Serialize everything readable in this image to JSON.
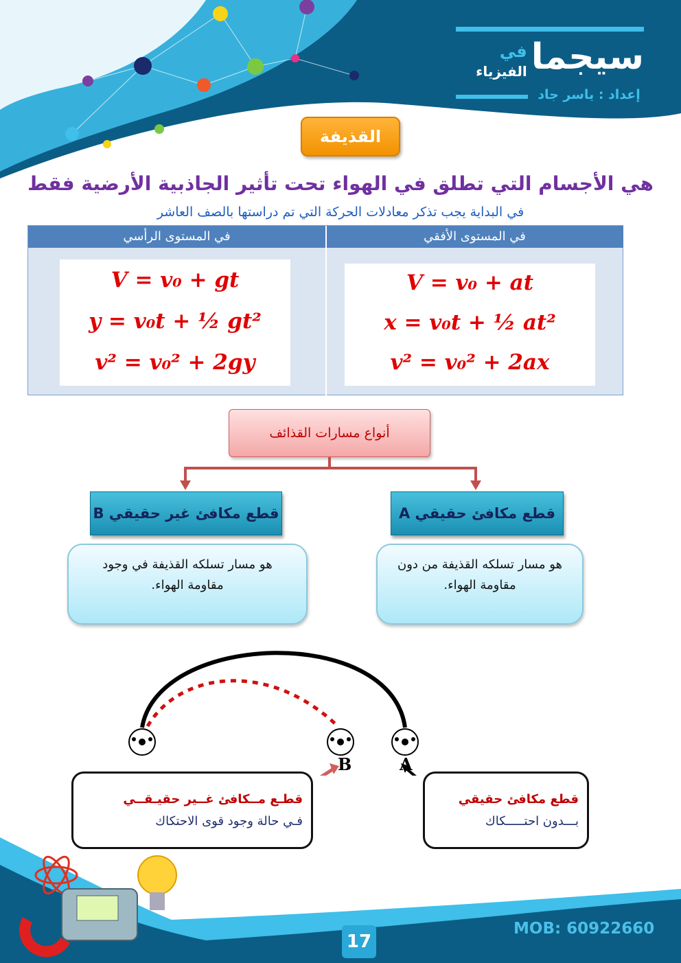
{
  "header": {
    "brand_main": "سيجما",
    "brand_small_top": "في",
    "brand_small": "الفيزياء",
    "author": "إعداد : ياسر جاد",
    "colors": {
      "dark_blue": "#0b5d86",
      "light_blue": "#3fbfea"
    }
  },
  "badge": {
    "label": "القذيفة",
    "color": "#f39200"
  },
  "definition": "هي الأجسام التي تطلق في الهواء تحت تأثير الجاذبية الأرضية فقط",
  "intro": "في البداية يجب تذكر معادلات الحركة التي تم دراستها بالصف العاشر",
  "table": {
    "horizontal": {
      "header": "في المستوى الأفقي",
      "eq1": "V = v₀ + at",
      "eq2": "x = v₀t + ½ at²",
      "eq3": "v² = v₀² + 2ax"
    },
    "vertical": {
      "header": "في المستوى الرأسي",
      "eq1": "V = v₀ + gt",
      "eq2": "y = v₀t + ½ gt²",
      "eq3": "v² = v₀² + 2gy"
    }
  },
  "flow": {
    "root": "أنواع مسارات القذائف",
    "a": {
      "title": "قطع مكافئ حقيقي A",
      "desc_line1": "هو مسار تسلكه القذيفة من دون",
      "desc_line2": "مقاومة الهواء."
    },
    "b": {
      "title": "قطع مكافئ غير حقيقي B",
      "desc_line1": "هو مسار تسلكه القذيفة في وجود",
      "desc_line2": "مقاومة الهواء."
    }
  },
  "diagram": {
    "label_a": "A",
    "label_b": "B",
    "note_a": {
      "title": "قطع مكافئ حقيقي",
      "text": "بـــدون احتـــــكاك"
    },
    "note_b": {
      "title": "قطـع مــكافئ غــير حقيـقــي",
      "text": "فـي حالة وجود قوى  الاحتكاك"
    }
  },
  "footer": {
    "page": "17",
    "mob": "MOB: 60922660"
  }
}
